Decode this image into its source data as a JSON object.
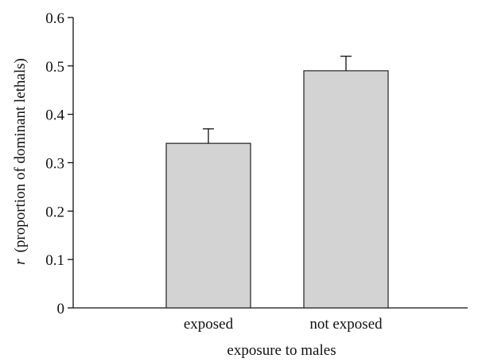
{
  "chart_data": {
    "type": "bar",
    "categories": [
      "exposed",
      "not exposed"
    ],
    "values": [
      0.34,
      0.49
    ],
    "error_bars": [
      0.03,
      0.03
    ],
    "xlabel": "exposure to males",
    "ylabel_symbol": "r",
    "ylabel": "(proportion of dominant lethals)",
    "ylim": [
      0,
      0.6
    ],
    "yticks": [
      "0",
      "0.1",
      "0.2",
      "0.3",
      "0.4",
      "0.5",
      "0.6"
    ],
    "grid": false,
    "bar_color": "#d3d3d3",
    "bar_edge_color": "#222222"
  }
}
